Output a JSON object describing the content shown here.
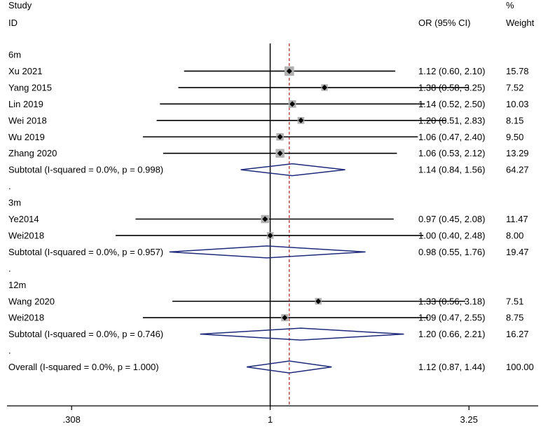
{
  "chart_data": {
    "type": "forest",
    "x_scale": "log",
    "xlim": [
      0.21,
      4.9
    ],
    "reference_line": 1,
    "overall_line": 1.12,
    "x_ticks": [
      {
        "value": 0.308,
        "label": ".308"
      },
      {
        "value": 1,
        "label": "1"
      },
      {
        "value": 3.25,
        "label": "3.25"
      }
    ],
    "header": {
      "study_line1": "Study",
      "study_line2": "ID",
      "ci_label": "OR (95% CI)",
      "weight_line1": "%",
      "weight_line2": "Weight"
    },
    "rows": [
      {
        "kind": "group",
        "label": "6m"
      },
      {
        "kind": "study",
        "label": "Xu 2021",
        "or": 1.12,
        "lo": 0.6,
        "hi": 2.1,
        "ci": "1.12 (0.60, 2.10)",
        "weight": 15.78,
        "weight_text": "15.78"
      },
      {
        "kind": "study",
        "label": "Yang 2015",
        "or": 1.38,
        "lo": 0.58,
        "hi": 3.25,
        "ci": "1.38 (0.58, 3.25)",
        "weight": 7.52,
        "weight_text": "7.52"
      },
      {
        "kind": "study",
        "label": "Lin 2019",
        "or": 1.14,
        "lo": 0.52,
        "hi": 2.5,
        "ci": "1.14 (0.52, 2.50)",
        "weight": 10.03,
        "weight_text": "10.03"
      },
      {
        "kind": "study",
        "label": "Wei 2018",
        "or": 1.2,
        "lo": 0.51,
        "hi": 2.83,
        "ci": "1.20 (0.51, 2.83)",
        "weight": 8.15,
        "weight_text": "8.15"
      },
      {
        "kind": "study",
        "label": "Wu 2019",
        "or": 1.06,
        "lo": 0.47,
        "hi": 2.4,
        "ci": "1.06 (0.47, 2.40)",
        "weight": 9.5,
        "weight_text": "9.50"
      },
      {
        "kind": "study",
        "label": "Zhang 2020",
        "or": 1.06,
        "lo": 0.53,
        "hi": 2.12,
        "ci": "1.06 (0.53, 2.12)",
        "weight": 13.29,
        "weight_text": "13.29"
      },
      {
        "kind": "subtotal",
        "label": "Subtotal  (I-squared = 0.0%, p = 0.998)",
        "or": 1.14,
        "lo": 0.84,
        "hi": 1.56,
        "ci": "1.14 (0.84, 1.56)",
        "weight": 64.27,
        "weight_text": "64.27"
      },
      {
        "kind": "spacer",
        "label": "."
      },
      {
        "kind": "group",
        "label": "3m"
      },
      {
        "kind": "study",
        "label": "Ye2014",
        "or": 0.97,
        "lo": 0.45,
        "hi": 2.08,
        "ci": "0.97 (0.45, 2.08)",
        "weight": 11.47,
        "weight_text": "11.47"
      },
      {
        "kind": "study",
        "label": "Wei2018",
        "or": 1.0,
        "lo": 0.4,
        "hi": 2.48,
        "ci": "1.00 (0.40, 2.48)",
        "weight": 8.0,
        "weight_text": "8.00"
      },
      {
        "kind": "subtotal",
        "label": "Subtotal  (I-squared = 0.0%, p = 0.957)",
        "or": 0.98,
        "lo": 0.55,
        "hi": 1.76,
        "ci": "0.98 (0.55, 1.76)",
        "weight": 19.47,
        "weight_text": "19.47"
      },
      {
        "kind": "spacer",
        "label": "."
      },
      {
        "kind": "group",
        "label": "12m"
      },
      {
        "kind": "study",
        "label": "Wang 2020",
        "or": 1.33,
        "lo": 0.56,
        "hi": 3.18,
        "ci": "1.33 (0.56, 3.18)",
        "weight": 7.51,
        "weight_text": "7.51"
      },
      {
        "kind": "study",
        "label": "Wei2018",
        "or": 1.09,
        "lo": 0.47,
        "hi": 2.55,
        "ci": "1.09 (0.47, 2.55)",
        "weight": 8.75,
        "weight_text": "8.75"
      },
      {
        "kind": "subtotal",
        "label": "Subtotal  (I-squared = 0.0%, p = 0.746)",
        "or": 1.2,
        "lo": 0.66,
        "hi": 2.21,
        "ci": "1.20 (0.66, 2.21)",
        "weight": 16.27,
        "weight_text": "16.27"
      },
      {
        "kind": "spacer",
        "label": "."
      },
      {
        "kind": "overall",
        "label": "Overall  (I-squared = 0.0%, p = 1.000)",
        "or": 1.12,
        "lo": 0.87,
        "hi": 1.44,
        "ci": "1.12 (0.87, 1.44)",
        "weight": 100.0,
        "weight_text": "100.00"
      }
    ],
    "colors": {
      "line": "#000000",
      "diamond": "#1f2a7a",
      "box": "#b0b0b0",
      "dashed": "#b22222"
    }
  }
}
